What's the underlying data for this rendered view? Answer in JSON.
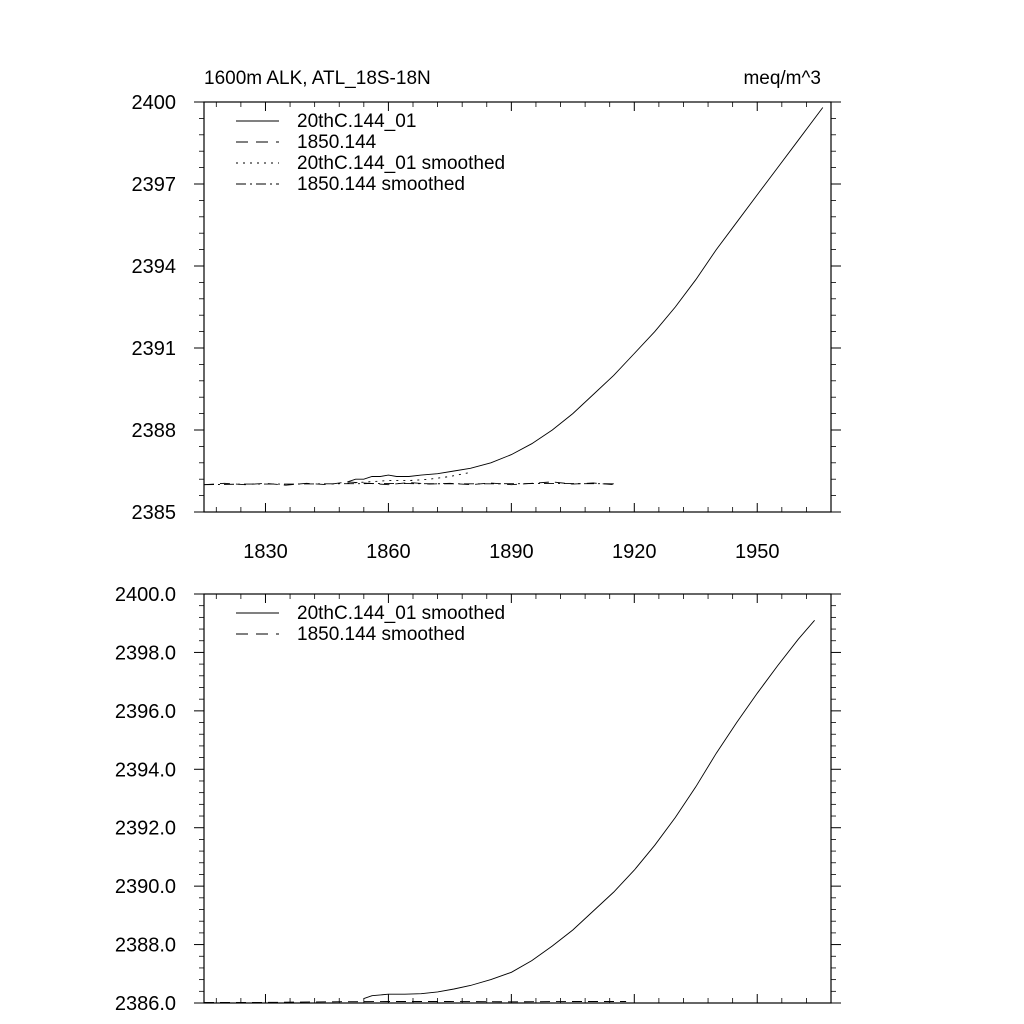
{
  "chart_data": [
    {
      "type": "line",
      "title_left": "1600m ALK, ATL_18S-18N",
      "title_right": "meq/m^3",
      "xlabel": "",
      "ylabel": "",
      "xlim": [
        1815,
        1968
      ],
      "ylim": [
        2385,
        2400
      ],
      "x_ticks": [
        1830,
        1860,
        1890,
        1920,
        1950
      ],
      "y_ticks": [
        2385,
        2388,
        2391,
        2394,
        2397,
        2400
      ],
      "y_tick_labels": [
        "2385",
        "2388",
        "2391",
        "2394",
        "2397",
        "2400"
      ],
      "grid": false,
      "legend_position": "top-left",
      "series": [
        {
          "name": "20thC.144_01",
          "dash": "solid",
          "x": [
            1850,
            1852,
            1854,
            1856,
            1858,
            1860,
            1862,
            1865,
            1868,
            1872,
            1876,
            1880,
            1885,
            1890,
            1895,
            1900,
            1905,
            1910,
            1915,
            1920,
            1925,
            1930,
            1935,
            1940,
            1945,
            1950,
            1955,
            1960,
            1966
          ],
          "y": [
            2386.1,
            2386.2,
            2386.2,
            2386.3,
            2386.3,
            2386.35,
            2386.3,
            2386.3,
            2386.35,
            2386.4,
            2386.5,
            2386.6,
            2386.8,
            2387.1,
            2387.5,
            2388.0,
            2388.6,
            2389.3,
            2390.0,
            2390.8,
            2391.6,
            2392.5,
            2393.5,
            2394.6,
            2395.6,
            2396.6,
            2397.6,
            2398.6,
            2399.8
          ]
        },
        {
          "name": "1850.144",
          "dash": "dash",
          "x": [
            1815,
            1820,
            1825,
            1830,
            1835,
            1840,
            1845,
            1850,
            1855,
            1860,
            1865,
            1870,
            1875,
            1880,
            1885,
            1890,
            1895,
            1900,
            1905,
            1910,
            1915
          ],
          "y": [
            2386.0,
            2386.05,
            2386.0,
            2386.05,
            2385.98,
            2386.05,
            2386.0,
            2386.1,
            2386.05,
            2386.0,
            2386.08,
            2386.02,
            2386.05,
            2386.0,
            2386.06,
            2386.0,
            2386.05,
            2386.1,
            2386.02,
            2386.06,
            2386.0
          ]
        },
        {
          "name": "20thC.144_01 smoothed",
          "dash": "dot",
          "x": [
            1850,
            1855,
            1860,
            1865,
            1870,
            1875,
            1880
          ],
          "y": [
            2386.05,
            2386.1,
            2386.15,
            2386.15,
            2386.2,
            2386.3,
            2386.45
          ]
        },
        {
          "name": "1850.144 smoothed",
          "dash": "dashdot",
          "x": [
            1815,
            1825,
            1835,
            1845,
            1855,
            1865,
            1875,
            1885,
            1895,
            1905,
            1915
          ],
          "y": [
            2386.0,
            2386.02,
            2386.02,
            2386.03,
            2386.04,
            2386.04,
            2386.03,
            2386.03,
            2386.04,
            2386.04,
            2386.03
          ]
        }
      ]
    },
    {
      "type": "line",
      "title_left": "",
      "title_right": "",
      "xlabel": "",
      "ylabel": "",
      "xlim": [
        1815,
        1968
      ],
      "ylim": [
        2386.0,
        2400.0
      ],
      "x_ticks": [
        1830,
        1860,
        1890,
        1920,
        1950
      ],
      "y_ticks": [
        2386,
        2388,
        2390,
        2392,
        2394,
        2396,
        2398,
        2400
      ],
      "y_tick_labels": [
        "2386.0",
        "2388.0",
        "2390.0",
        "2392.0",
        "2394.0",
        "2396.0",
        "2398.0",
        "2400.0"
      ],
      "grid": false,
      "legend_position": "top-left",
      "series": [
        {
          "name": "20thC.144_01 smoothed",
          "dash": "solid",
          "x": [
            1854,
            1856,
            1860,
            1864,
            1868,
            1872,
            1876,
            1880,
            1885,
            1890,
            1895,
            1900,
            1905,
            1910,
            1915,
            1920,
            1925,
            1930,
            1935,
            1940,
            1945,
            1950,
            1955,
            1960,
            1964
          ],
          "y": [
            2386.15,
            2386.25,
            2386.3,
            2386.3,
            2386.32,
            2386.38,
            2386.48,
            2386.6,
            2386.8,
            2387.05,
            2387.45,
            2387.95,
            2388.5,
            2389.15,
            2389.8,
            2390.55,
            2391.4,
            2392.35,
            2393.4,
            2394.55,
            2395.6,
            2396.6,
            2397.55,
            2398.45,
            2399.1
          ]
        },
        {
          "name": "1850.144 smoothed",
          "dash": "dash",
          "x": [
            1815,
            1830,
            1845,
            1860,
            1875,
            1890,
            1905,
            1918
          ],
          "y": [
            2386.02,
            2386.02,
            2386.04,
            2386.05,
            2386.05,
            2386.04,
            2386.05,
            2386.05
          ]
        }
      ]
    }
  ]
}
